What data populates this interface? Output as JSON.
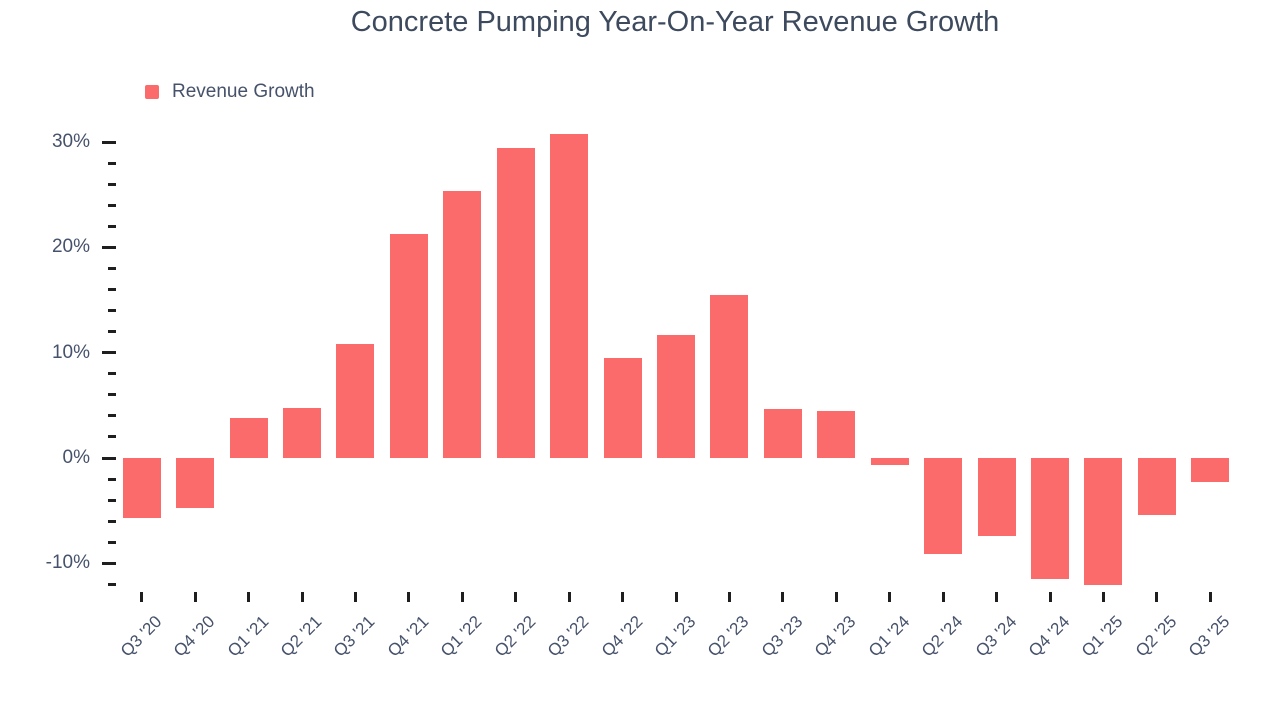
{
  "title": "Concrete Pumping Year-On-Year Revenue Growth",
  "legend": {
    "label": "Revenue Growth"
  },
  "colors": {
    "bar": "#FC6B6B",
    "title_text": "#3D4A5E",
    "axis_text": "#46526B",
    "tick": "#1F1F1F",
    "background": "#FFFFFF"
  },
  "chart_data": {
    "type": "bar",
    "title": "Concrete Pumping Year-On-Year Revenue Growth",
    "series_name": "Revenue Growth",
    "categories": [
      "Q3 '20",
      "Q4 '20",
      "Q1 '21",
      "Q2 '21",
      "Q3 '21",
      "Q4 '21",
      "Q1 '22",
      "Q2 '22",
      "Q3 '22",
      "Q4 '22",
      "Q1 '23",
      "Q2 '23",
      "Q3 '23",
      "Q4 '23",
      "Q1 '24",
      "Q2 '24",
      "Q3 '24",
      "Q4 '24",
      "Q1 '25",
      "Q2 '25",
      "Q3 '25"
    ],
    "values": [
      -5.7,
      -4.7,
      3.8,
      4.8,
      10.8,
      21.3,
      25.4,
      29.4,
      30.8,
      9.5,
      11.7,
      15.5,
      4.7,
      4.5,
      -0.7,
      -9.1,
      -7.4,
      -11.5,
      -12.1,
      -5.4,
      -2.3
    ],
    "unit": "%",
    "xlabel": "",
    "ylabel": "",
    "y_major_ticks": [
      30,
      20,
      10,
      0,
      -10
    ],
    "y_tick_labels": [
      "30%",
      "20%",
      "10%",
      "0%",
      "-10%"
    ],
    "y_minor_tick_step": 2,
    "y_minor_tick_range": [
      -12,
      30
    ],
    "ylim": [
      -13,
      32
    ],
    "grid": false,
    "legend_position": "top-left",
    "baseline": 0
  }
}
